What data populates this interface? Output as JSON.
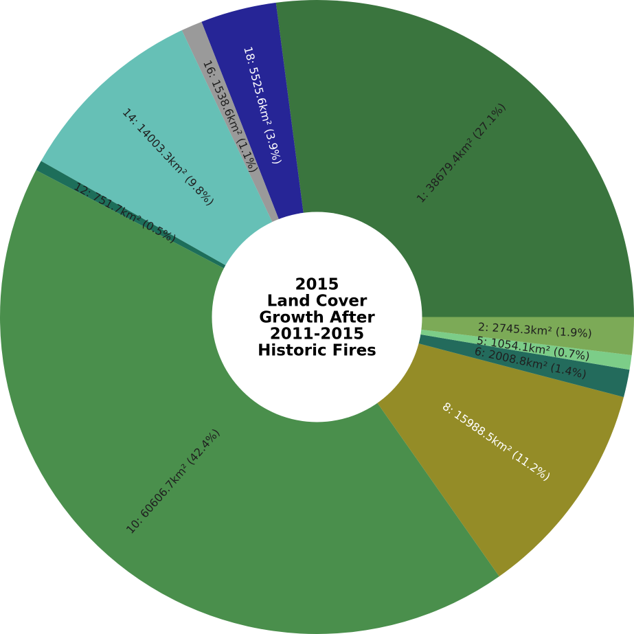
{
  "chart_data": {
    "type": "pie",
    "title_lines": [
      "2015",
      "Land Cover",
      "Growth After",
      "2011-2015",
      "Historic Fires"
    ],
    "unit": "km²",
    "slices": [
      {
        "label": "1: 38679.4km² (27.1%)",
        "value": 38679.4,
        "color": "#3a753e",
        "text_color": "#1f1f1f"
      },
      {
        "label": "18: 5525.6km² (3.9%)",
        "value": 5525.6,
        "color": "#262596",
        "text_color": "#ffffff"
      },
      {
        "label": "16: 1538.6km² (1.1%)",
        "value": 1538.6,
        "color": "#9a9a9a",
        "text_color": "#1f1f1f"
      },
      {
        "label": "14: 14003.3km² (9.8%)",
        "value": 14003.3,
        "color": "#66c0b6",
        "text_color": "#1f1f1f"
      },
      {
        "label": "12: 751.7km² (0.5%)",
        "value": 751.7,
        "color": "#1d6e5a",
        "text_color": "#1f1f1f"
      },
      {
        "label": "10: 60606.7km² (42.4%)",
        "value": 60606.7,
        "color": "#4a8f4c",
        "text_color": "#1f1f1f"
      },
      {
        "label": "8: 15988.5km² (11.2%)",
        "value": 15988.5,
        "color": "#948c27",
        "text_color": "#ffffff"
      },
      {
        "label": "6: 2008.8km² (1.4%)",
        "value": 2008.8,
        "color": "#236b5c",
        "text_color": "#1f1f1f"
      },
      {
        "label": "5: 1054.1km² (0.7%)",
        "value": 1054.1,
        "color": "#7ccd88",
        "text_color": "#1f1f1f"
      },
      {
        "label": "2: 2745.3km² (1.9%)",
        "value": 2745.3,
        "color": "#7caa57",
        "text_color": "#1f1f1f"
      }
    ]
  }
}
